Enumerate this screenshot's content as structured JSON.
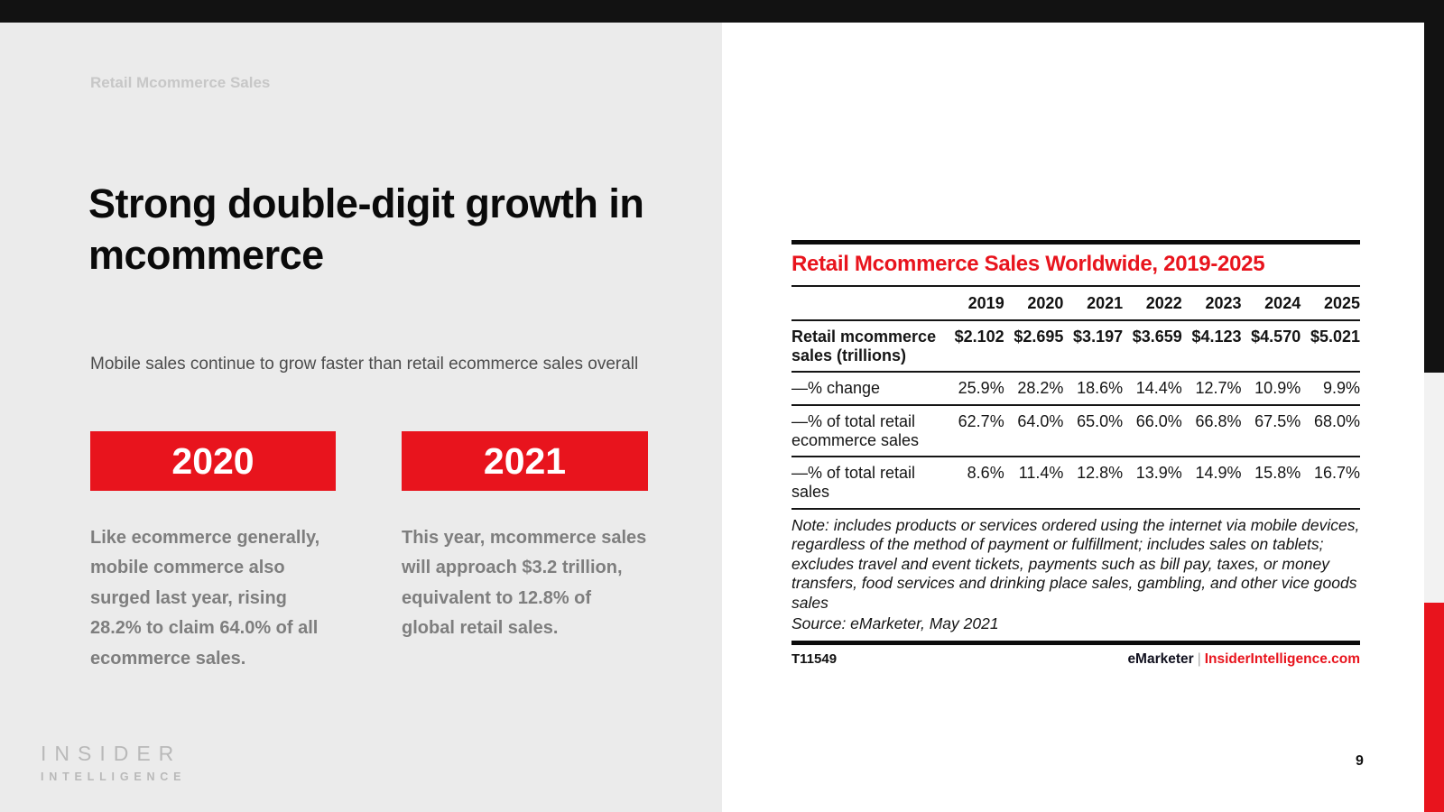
{
  "slide": {
    "eyebrow": "Retail Mcommerce Sales",
    "title": "Strong double-digit growth in mcommerce",
    "subtitle": "Mobile sales continue to grow faster than retail ecommerce sales overall",
    "callouts": [
      {
        "year": "2020",
        "text": "Like ecommerce generally, mobile commerce also surged last year, rising 28.2% to claim 64.0% of all ecommerce sales."
      },
      {
        "year": "2021",
        "text": "This year, mcommerce sales will approach $3.2 trillion, equivalent to 12.8% of global retail sales."
      }
    ],
    "logo_line1": "INSIDER",
    "logo_line2": "INTELLIGENCE",
    "page_number": "9"
  },
  "chart_data": {
    "type": "table",
    "title": "Retail Mcommerce Sales Worldwide, 2019-2025",
    "columns": [
      "2019",
      "2020",
      "2021",
      "2022",
      "2023",
      "2024",
      "2025"
    ],
    "rows": [
      {
        "label": "Retail mcommerce sales (trillions)",
        "bold": true,
        "values": [
          "$2.102",
          "$2.695",
          "$3.197",
          "$3.659",
          "$4.123",
          "$4.570",
          "$5.021"
        ]
      },
      {
        "label": "—% change",
        "bold": false,
        "values": [
          "25.9%",
          "28.2%",
          "18.6%",
          "14.4%",
          "12.7%",
          "10.9%",
          "9.9%"
        ]
      },
      {
        "label": "—% of total retail ecommerce sales",
        "bold": false,
        "values": [
          "62.7%",
          "64.0%",
          "65.0%",
          "66.0%",
          "66.8%",
          "67.5%",
          "68.0%"
        ]
      },
      {
        "label": "—% of total retail sales",
        "bold": false,
        "values": [
          "8.6%",
          "11.4%",
          "12.8%",
          "13.9%",
          "14.9%",
          "15.8%",
          "16.7%"
        ]
      }
    ],
    "note": "Note: includes products or services ordered using the internet via mobile devices, regardless of the method of payment or fulfillment; includes sales on tablets; excludes travel and event tickets, payments such as bill pay, taxes, or money transfers, food services and drinking place sales, gambling, and other vice goods sales",
    "source": "Source: eMarketer, May 2021",
    "footer_id": "T11549",
    "footer_brand": "eMarketer",
    "footer_separator": "|",
    "footer_site": "InsiderIntelligence.com"
  },
  "colors": {
    "accent_red": "#e8141d",
    "top_bar_black": "#121212",
    "left_panel_bg": "#ebebeb",
    "body_text_gray": "#7e7e7e"
  }
}
